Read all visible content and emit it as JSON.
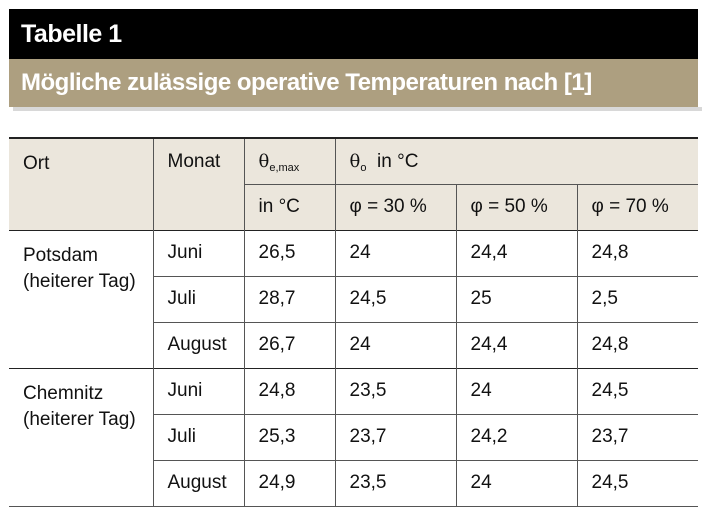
{
  "title": "Tabelle 1",
  "subtitle": "Mögliche zulässige operative Temperaturen nach [1]",
  "header": {
    "ort": "Ort",
    "monat": "Monat",
    "theta_e_sym": "θ",
    "theta_e_sub": "e,max",
    "theta_o_sym": "θ",
    "theta_o_sub": "o",
    "theta_o_unit": "in °C",
    "unit": "in °C",
    "phi30": "φ = 30 %",
    "phi50": "φ = 50 %",
    "phi70": "φ = 70 %"
  },
  "groups": [
    {
      "ort": "Potsdam (heiterer Tag)",
      "rows": [
        {
          "monat": "Juni",
          "theta_e": "26,5",
          "p30": "24",
          "p50": "24,4",
          "p70": "24,8"
        },
        {
          "monat": "Juli",
          "theta_e": "28,7",
          "p30": "24,5",
          "p50": "25",
          "p70": "2,5"
        },
        {
          "monat": "August",
          "theta_e": "26,7",
          "p30": "24",
          "p50": "24,4",
          "p70": "24,8"
        }
      ]
    },
    {
      "ort": "Chemnitz (heiterer Tag)",
      "rows": [
        {
          "monat": "Juni",
          "theta_e": "24,8",
          "p30": "23,5",
          "p50": "24",
          "p70": "24,5"
        },
        {
          "monat": "Juli",
          "theta_e": "25,3",
          "p30": "23,7",
          "p50": "24,2",
          "p70": "23,7"
        },
        {
          "monat": "August",
          "theta_e": "24,9",
          "p30": "23,5",
          "p50": "24",
          "p70": "24,5"
        }
      ]
    }
  ]
}
